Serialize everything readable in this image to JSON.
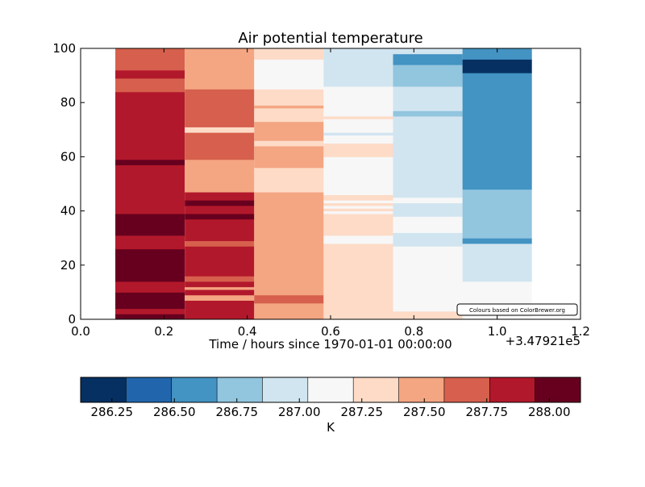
{
  "chart_data": {
    "type": "heatmap",
    "title": "Air potential temperature",
    "xlabel": "Time / hours since 1970-01-01 00:00:00",
    "x_offset_text": "+3.47921e5",
    "ylabel": "",
    "xlim": [
      0.0,
      1.2
    ],
    "ylim": [
      0,
      100
    ],
    "x_ticks": [
      "0.0",
      "0.2",
      "0.4",
      "0.6",
      "0.8",
      "1.0",
      "1.2"
    ],
    "y_ticks": [
      "0",
      "20",
      "40",
      "60",
      "80",
      "100"
    ],
    "x_tick_values": [
      0.0,
      0.2,
      0.4,
      0.6,
      0.8,
      1.0,
      1.2
    ],
    "y_tick_values": [
      0,
      20,
      40,
      60,
      80,
      100
    ],
    "grid": false,
    "colormap": "RdBu_r",
    "colors": [
      "#053061",
      "#2166ac",
      "#4393c3",
      "#92c5de",
      "#d1e5f0",
      "#f7f7f7",
      "#fddbc7",
      "#f4a582",
      "#d6604d",
      "#b2182b",
      "#67001f"
    ],
    "levels": [
      286.125,
      286.25,
      286.375,
      286.5,
      286.625,
      286.75,
      286.875,
      287.0,
      287.125,
      287.25,
      287.375,
      287.5,
      287.625,
      287.75,
      287.875,
      288.0,
      288.125
    ],
    "colorbar": {
      "label": "K",
      "tick_labels": [
        "286.25",
        "286.50",
        "286.75",
        "287.00",
        "287.25",
        "287.50",
        "287.75",
        "288.00"
      ],
      "tick_values": [
        286.25,
        286.5,
        286.75,
        287.0,
        287.25,
        287.5,
        287.75,
        288.0
      ],
      "range": [
        286.125,
        288.125
      ]
    },
    "columns": [
      {
        "x_start": 0.0833,
        "x_end": 0.25,
        "bands": [
          {
            "y0": 0,
            "y1": 2,
            "value": 288.05
          },
          {
            "y0": 2,
            "y1": 4,
            "value": 287.95
          },
          {
            "y0": 4,
            "y1": 10,
            "value": 288.05
          },
          {
            "y0": 10,
            "y1": 14,
            "value": 287.9
          },
          {
            "y0": 14,
            "y1": 26,
            "value": 288.05
          },
          {
            "y0": 26,
            "y1": 31,
            "value": 287.9
          },
          {
            "y0": 31,
            "y1": 39,
            "value": 288.05
          },
          {
            "y0": 39,
            "y1": 57,
            "value": 287.9
          },
          {
            "y0": 57,
            "y1": 59,
            "value": 288.05
          },
          {
            "y0": 59,
            "y1": 84,
            "value": 287.9
          },
          {
            "y0": 84,
            "y1": 89,
            "value": 287.8
          },
          {
            "y0": 89,
            "y1": 92,
            "value": 287.9
          },
          {
            "y0": 92,
            "y1": 100,
            "value": 287.8
          }
        ]
      },
      {
        "x_start": 0.25,
        "x_end": 0.4167,
        "bands": [
          {
            "y0": 0,
            "y1": 7,
            "value": 287.9
          },
          {
            "y0": 7,
            "y1": 9,
            "value": 287.6
          },
          {
            "y0": 9,
            "y1": 11,
            "value": 287.9
          },
          {
            "y0": 11,
            "y1": 12,
            "value": 287.6
          },
          {
            "y0": 12,
            "y1": 14,
            "value": 287.9
          },
          {
            "y0": 14,
            "y1": 16,
            "value": 287.7
          },
          {
            "y0": 16,
            "y1": 27,
            "value": 287.9
          },
          {
            "y0": 27,
            "y1": 29,
            "value": 287.7
          },
          {
            "y0": 29,
            "y1": 37,
            "value": 287.9
          },
          {
            "y0": 37,
            "y1": 39,
            "value": 288.05
          },
          {
            "y0": 39,
            "y1": 42,
            "value": 287.9
          },
          {
            "y0": 42,
            "y1": 44,
            "value": 288.05
          },
          {
            "y0": 44,
            "y1": 47,
            "value": 287.9
          },
          {
            "y0": 47,
            "y1": 53,
            "value": 287.6
          },
          {
            "y0": 53,
            "y1": 59,
            "value": 287.5
          },
          {
            "y0": 59,
            "y1": 69,
            "value": 287.7
          },
          {
            "y0": 69,
            "y1": 71,
            "value": 287.4
          },
          {
            "y0": 71,
            "y1": 85,
            "value": 287.7
          },
          {
            "y0": 85,
            "y1": 100,
            "value": 287.5
          }
        ]
      },
      {
        "x_start": 0.4167,
        "x_end": 0.5833,
        "bands": [
          {
            "y0": 0,
            "y1": 6,
            "value": 287.5
          },
          {
            "y0": 6,
            "y1": 9,
            "value": 287.7
          },
          {
            "y0": 9,
            "y1": 19,
            "value": 287.5
          },
          {
            "y0": 19,
            "y1": 21,
            "value": 287.6
          },
          {
            "y0": 21,
            "y1": 47,
            "value": 287.5
          },
          {
            "y0": 47,
            "y1": 56,
            "value": 287.3
          },
          {
            "y0": 56,
            "y1": 64,
            "value": 287.5
          },
          {
            "y0": 64,
            "y1": 66,
            "value": 287.3
          },
          {
            "y0": 66,
            "y1": 73,
            "value": 287.5
          },
          {
            "y0": 73,
            "y1": 75,
            "value": 287.3
          },
          {
            "y0": 75,
            "y1": 78,
            "value": 287.4
          },
          {
            "y0": 78,
            "y1": 79,
            "value": 287.6
          },
          {
            "y0": 79,
            "y1": 85,
            "value": 287.3
          },
          {
            "y0": 85,
            "y1": 96,
            "value": 287.2
          },
          {
            "y0": 96,
            "y1": 100,
            "value": 287.3
          }
        ]
      },
      {
        "x_start": 0.5833,
        "x_end": 0.75,
        "bands": [
          {
            "y0": 0,
            "y1": 28,
            "value": 287.3
          },
          {
            "y0": 28,
            "y1": 31,
            "value": 287.2
          },
          {
            "y0": 31,
            "y1": 39,
            "value": 287.3
          },
          {
            "y0": 39,
            "y1": 40,
            "value": 287.2
          },
          {
            "y0": 40,
            "y1": 41,
            "value": 287.3
          },
          {
            "y0": 41,
            "y1": 42,
            "value": 287.2
          },
          {
            "y0": 42,
            "y1": 43,
            "value": 287.3
          },
          {
            "y0": 43,
            "y1": 44,
            "value": 287.2
          },
          {
            "y0": 44,
            "y1": 46,
            "value": 287.3
          },
          {
            "y0": 46,
            "y1": 60,
            "value": 287.2
          },
          {
            "y0": 60,
            "y1": 65,
            "value": 287.3
          },
          {
            "y0": 65,
            "y1": 68,
            "value": 287.2
          },
          {
            "y0": 68,
            "y1": 69,
            "value": 287.05
          },
          {
            "y0": 69,
            "y1": 74,
            "value": 287.2
          },
          {
            "y0": 74,
            "y1": 75,
            "value": 287.3
          },
          {
            "y0": 75,
            "y1": 86,
            "value": 287.2
          },
          {
            "y0": 86,
            "y1": 90,
            "value": 287.05
          },
          {
            "y0": 90,
            "y1": 93,
            "value": 286.9
          },
          {
            "y0": 93,
            "y1": 97,
            "value": 287.05
          },
          {
            "y0": 97,
            "y1": 100,
            "value": 287.05
          }
        ]
      },
      {
        "x_start": 0.75,
        "x_end": 0.9167,
        "bands": [
          {
            "y0": 0,
            "y1": 3,
            "value": 287.3
          },
          {
            "y0": 3,
            "y1": 27,
            "value": 287.2
          },
          {
            "y0": 27,
            "y1": 32,
            "value": 287.05
          },
          {
            "y0": 32,
            "y1": 38,
            "value": 287.2
          },
          {
            "y0": 38,
            "y1": 43,
            "value": 287.05
          },
          {
            "y0": 43,
            "y1": 45,
            "value": 287.2
          },
          {
            "y0": 45,
            "y1": 58,
            "value": 286.9
          },
          {
            "y0": 58,
            "y1": 59,
            "value": 287.05
          },
          {
            "y0": 59,
            "y1": 67,
            "value": 286.9
          },
          {
            "y0": 67,
            "y1": 75,
            "value": 286.9
          },
          {
            "y0": 75,
            "y1": 77,
            "value": 286.8
          },
          {
            "y0": 77,
            "y1": 86,
            "value": 287.05
          },
          {
            "y0": 86,
            "y1": 94,
            "value": 286.8
          },
          {
            "y0": 94,
            "y1": 98,
            "value": 286.6
          },
          {
            "y0": 98,
            "y1": 100,
            "value": 286.9
          }
        ]
      },
      {
        "x_start": 0.9167,
        "x_end": 1.0833,
        "bands": [
          {
            "y0": 0,
            "y1": 14,
            "value": 287.2
          },
          {
            "y0": 14,
            "y1": 16,
            "value": 287.05
          },
          {
            "y0": 16,
            "y1": 28,
            "value": 286.9
          },
          {
            "y0": 28,
            "y1": 30,
            "value": 286.7
          },
          {
            "y0": 30,
            "y1": 48,
            "value": 286.8
          },
          {
            "y0": 48,
            "y1": 52,
            "value": 286.5
          },
          {
            "y0": 52,
            "y1": 56,
            "value": 286.7
          },
          {
            "y0": 56,
            "y1": 59,
            "value": 286.5
          },
          {
            "y0": 59,
            "y1": 66,
            "value": 286.7
          },
          {
            "y0": 66,
            "y1": 68,
            "value": 286.5
          },
          {
            "y0": 68,
            "y1": 88,
            "value": 286.7
          },
          {
            "y0": 88,
            "y1": 91,
            "value": 286.5
          },
          {
            "y0": 91,
            "y1": 96,
            "value": 286.2
          },
          {
            "y0": 96,
            "y1": 100,
            "value": 286.5
          }
        ]
      }
    ]
  },
  "credit_text": "Colours based on ColorBrewer.org"
}
